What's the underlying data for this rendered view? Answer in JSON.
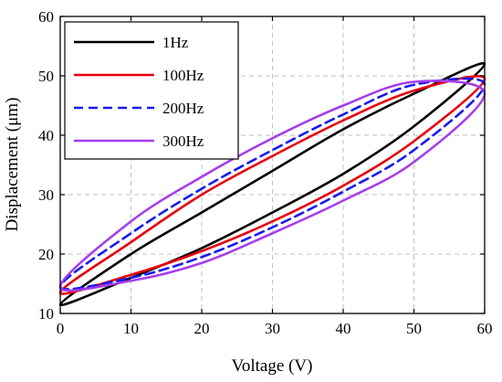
{
  "chart_data": {
    "type": "line",
    "title": "",
    "xlabel": "Voltage (V)",
    "ylabel": "Displacement (μm)",
    "xlim": [
      0,
      60
    ],
    "ylim": [
      10,
      60
    ],
    "xticks": [
      0,
      10,
      20,
      30,
      40,
      50,
      60
    ],
    "yticks": [
      10,
      20,
      30,
      40,
      50,
      60
    ],
    "grid": true,
    "legend_position": "top-left",
    "series": [
      {
        "name": "1Hz",
        "color": "#000000",
        "dash": "solid",
        "x": [
          0,
          10,
          20,
          30,
          40,
          50,
          60,
          50,
          40,
          30,
          20,
          10,
          0
        ],
        "y": [
          11.5,
          16,
          21,
          27,
          33.5,
          41.5,
          52,
          47,
          41,
          34,
          27,
          20,
          13.5
        ]
      },
      {
        "name": "100Hz",
        "color": "#e8000b",
        "dash": "solid",
        "x": [
          0,
          10,
          20,
          30,
          40,
          50,
          60,
          50,
          40,
          30,
          20,
          10,
          0
        ],
        "y": [
          13.5,
          16.5,
          20.5,
          25.5,
          31.5,
          39,
          49.5,
          47.5,
          42.5,
          36.5,
          30,
          22,
          13.5
        ]
      },
      {
        "name": "200Hz",
        "color": "#1a1aee",
        "dash": "dashed",
        "x": [
          0,
          10,
          20,
          30,
          40,
          50,
          60,
          50,
          40,
          30,
          20,
          10,
          0
        ],
        "y": [
          14.5,
          16,
          19.5,
          24.5,
          30.5,
          37.5,
          48.5,
          48.5,
          43.5,
          37.5,
          31,
          23.5,
          14.5
        ]
      },
      {
        "name": "300Hz",
        "color": "#a63deb",
        "dash": "solid",
        "x": [
          0,
          10,
          20,
          30,
          40,
          50,
          60,
          50,
          40,
          30,
          20,
          10,
          0
        ],
        "y": [
          14.5,
          15.5,
          18.5,
          23.5,
          29,
          35.5,
          47,
          49,
          45,
          39.5,
          33,
          25.5,
          14.5
        ]
      }
    ]
  }
}
